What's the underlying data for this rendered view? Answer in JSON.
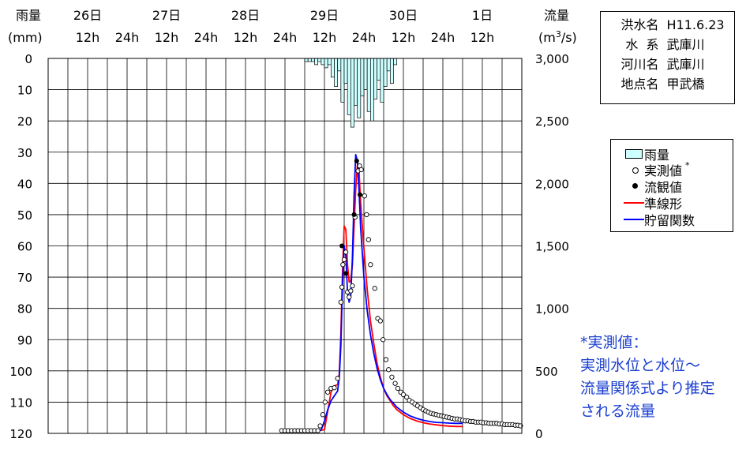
{
  "chart_data": {
    "type": "combo",
    "left_axis": {
      "title": "雨量",
      "unit": "(mm)",
      "ticks": [
        0,
        10,
        20,
        30,
        40,
        50,
        60,
        70,
        80,
        90,
        100,
        110,
        120
      ],
      "range": [
        0,
        120
      ],
      "inverted": true
    },
    "right_axis": {
      "title": "流量",
      "unit_base": "(m",
      "unit_sup": "3",
      "unit_tail": "/s)",
      "ticks": [
        "0",
        "500",
        "1,000",
        "1,500",
        "2,000",
        "2,500",
        "3,000"
      ],
      "tick_values": [
        0,
        500,
        1000,
        1500,
        2000,
        2500,
        3000
      ],
      "range": [
        0,
        3000
      ]
    },
    "x_axis": {
      "range_hours": [
        0,
        144
      ],
      "day_labels": [
        {
          "label": "26日",
          "h": 12
        },
        {
          "label": "27日",
          "h": 36
        },
        {
          "label": "28日",
          "h": 60
        },
        {
          "label": "29日",
          "h": 84
        },
        {
          "label": "30日",
          "h": 108
        },
        {
          "label": "1日",
          "h": 132
        }
      ],
      "hour_labels": [
        {
          "label": "12h",
          "h": 12
        },
        {
          "label": "24h",
          "h": 24
        },
        {
          "label": "12h",
          "h": 36
        },
        {
          "label": "24h",
          "h": 48
        },
        {
          "label": "12h",
          "h": 60
        },
        {
          "label": "24h",
          "h": 72
        },
        {
          "label": "12h",
          "h": 84
        },
        {
          "label": "24h",
          "h": 96
        },
        {
          "label": "12h",
          "h": 108
        },
        {
          "label": "24h",
          "h": 120
        },
        {
          "label": "12h",
          "h": 132
        }
      ],
      "grid_step_hours": 6
    },
    "grid": true,
    "rainfall": {
      "name": "雨量",
      "start_hour": 78,
      "step_hours": 1,
      "values": [
        1,
        1,
        1,
        2,
        1,
        2,
        3,
        2,
        6,
        9,
        4,
        14,
        8,
        18,
        22,
        15,
        19,
        12,
        10,
        17,
        20,
        13,
        7,
        14,
        9,
        4,
        8,
        2
      ]
    },
    "observed": {
      "name": "実測値",
      "points": [
        [
          71,
          22
        ],
        [
          72,
          22
        ],
        [
          73,
          22
        ],
        [
          74,
          22
        ],
        [
          75,
          22
        ],
        [
          76,
          22
        ],
        [
          77,
          22
        ],
        [
          78,
          22
        ],
        [
          79,
          22
        ],
        [
          80,
          22
        ],
        [
          81,
          22
        ],
        [
          82,
          22
        ],
        [
          82.7,
          60
        ],
        [
          83.5,
          150
        ],
        [
          84.2,
          250
        ],
        [
          85,
          330
        ],
        [
          86,
          360
        ],
        [
          87,
          365
        ],
        [
          88,
          440
        ],
        [
          89,
          1050
        ],
        [
          89.3,
          1170
        ],
        [
          89.6,
          1350
        ],
        [
          90,
          1390
        ],
        [
          90.5,
          1450
        ],
        [
          91,
          1130
        ],
        [
          91.5,
          1090
        ],
        [
          92,
          1140
        ],
        [
          92.5,
          1180
        ],
        [
          93.3,
          1730
        ],
        [
          94.2,
          2100
        ],
        [
          94.7,
          2140
        ],
        [
          95.2,
          2110
        ],
        [
          96.2,
          1900
        ],
        [
          96.8,
          1750
        ],
        [
          97.4,
          1550
        ],
        [
          98,
          1350
        ],
        [
          99.3,
          1160
        ],
        [
          100.2,
          920
        ],
        [
          101,
          900
        ],
        [
          101.8,
          750
        ],
        [
          102.7,
          590
        ],
        [
          103.5,
          510
        ],
        [
          104.5,
          450
        ],
        [
          105.5,
          400
        ],
        [
          106.3,
          360
        ],
        [
          107.2,
          330
        ],
        [
          108,
          310
        ],
        [
          109,
          290
        ],
        [
          109.8,
          265
        ],
        [
          110.7,
          250
        ],
        [
          111.5,
          235
        ],
        [
          112.3,
          220
        ],
        [
          113.2,
          205
        ],
        [
          114,
          190
        ],
        [
          114.8,
          180
        ],
        [
          115.6,
          170
        ],
        [
          116.4,
          160
        ],
        [
          117.2,
          155
        ],
        [
          118,
          150
        ],
        [
          118.8,
          145
        ],
        [
          119.6,
          140
        ],
        [
          120.4,
          135
        ],
        [
          121.2,
          130
        ],
        [
          122,
          125
        ],
        [
          122.8,
          120
        ],
        [
          123.6,
          115
        ],
        [
          124.4,
          115
        ],
        [
          125.2,
          110
        ],
        [
          126,
          105
        ],
        [
          126.8,
          100
        ],
        [
          127.6,
          100
        ],
        [
          128.4,
          95
        ],
        [
          129.2,
          95
        ],
        [
          130,
          90
        ],
        [
          130.8,
          90
        ],
        [
          131.6,
          90
        ],
        [
          132.4,
          85
        ],
        [
          133.2,
          85
        ],
        [
          134,
          80
        ],
        [
          134.8,
          80
        ],
        [
          135.6,
          80
        ],
        [
          136.4,
          80
        ],
        [
          137.2,
          75
        ],
        [
          138,
          75
        ],
        [
          138.8,
          70
        ],
        [
          139.6,
          70
        ],
        [
          140.4,
          70
        ],
        [
          141.2,
          70
        ],
        [
          142,
          65
        ],
        [
          142.8,
          65
        ],
        [
          143.6,
          60
        ]
      ]
    },
    "gauged": {
      "name": "流観値",
      "points": [
        [
          89.3,
          1500
        ],
        [
          90.5,
          1280
        ],
        [
          93,
          1750
        ],
        [
          93.8,
          2180
        ],
        [
          94.8,
          1910
        ]
      ]
    },
    "series": [
      {
        "name": "準線形",
        "color": "#ff0000",
        "points": [
          [
            82,
            20
          ],
          [
            84,
            30
          ],
          [
            85,
            180
          ],
          [
            86,
            330
          ],
          [
            87,
            380
          ],
          [
            88,
            390
          ],
          [
            88.5,
            480
          ],
          [
            89,
            800
          ],
          [
            89.5,
            1300
          ],
          [
            90,
            1660
          ],
          [
            90.5,
            1630
          ],
          [
            91,
            1350
          ],
          [
            91.5,
            1210
          ],
          [
            92,
            1220
          ],
          [
            92.5,
            1350
          ],
          [
            93,
            1650
          ],
          [
            93.5,
            1950
          ],
          [
            94,
            2150
          ],
          [
            94.5,
            2100
          ],
          [
            95,
            1850
          ],
          [
            96,
            1480
          ],
          [
            97,
            1150
          ],
          [
            98,
            900
          ],
          [
            99,
            720
          ],
          [
            100,
            560
          ],
          [
            101,
            450
          ],
          [
            102,
            360
          ],
          [
            103,
            300
          ],
          [
            104,
            260
          ],
          [
            105,
            220
          ],
          [
            106,
            190
          ],
          [
            108,
            150
          ],
          [
            110,
            120
          ],
          [
            112,
            100
          ],
          [
            114,
            85
          ],
          [
            116,
            75
          ],
          [
            118,
            68
          ],
          [
            120,
            62
          ],
          [
            122,
            58
          ],
          [
            124,
            55
          ],
          [
            126,
            55
          ]
        ]
      },
      {
        "name": "貯留関数",
        "color": "#0000ff",
        "points": [
          [
            81,
            20
          ],
          [
            82,
            22
          ],
          [
            83,
            25
          ],
          [
            84,
            100
          ],
          [
            85,
            190
          ],
          [
            86,
            260
          ],
          [
            87,
            300
          ],
          [
            88,
            340
          ],
          [
            88.5,
            450
          ],
          [
            89,
            700
          ],
          [
            89.5,
            1200
          ],
          [
            90,
            1500
          ],
          [
            90.5,
            1420
          ],
          [
            91,
            1130
          ],
          [
            91.5,
            1050
          ],
          [
            92,
            1100
          ],
          [
            92.5,
            1400
          ],
          [
            93,
            1900
          ],
          [
            93.5,
            2230
          ],
          [
            94,
            2180
          ],
          [
            94.5,
            1950
          ],
          [
            95,
            1650
          ],
          [
            96,
            1250
          ],
          [
            97,
            980
          ],
          [
            98,
            790
          ],
          [
            99,
            640
          ],
          [
            100,
            520
          ],
          [
            101,
            430
          ],
          [
            102,
            360
          ],
          [
            103,
            310
          ],
          [
            104,
            270
          ],
          [
            105,
            240
          ],
          [
            106,
            210
          ],
          [
            108,
            170
          ],
          [
            110,
            140
          ],
          [
            112,
            120
          ],
          [
            114,
            105
          ],
          [
            116,
            95
          ],
          [
            118,
            88
          ],
          [
            120,
            85
          ],
          [
            122,
            82
          ],
          [
            124,
            80
          ],
          [
            126,
            80
          ]
        ]
      }
    ]
  },
  "info_box": [
    {
      "key": "洪水名",
      "value": "H11.6.23"
    },
    {
      "key": "水  系",
      "value": "武庫川"
    },
    {
      "key": "河川名",
      "value": "武庫川"
    },
    {
      "key": "地点名",
      "value": "甲武橋"
    }
  ],
  "legend": {
    "items": [
      "雨量",
      "実測値",
      "流観値",
      "準線形",
      "貯留関数"
    ],
    "asterisk": "*",
    "rain_fill": "#ccffff",
    "red": "#ff0000",
    "blue": "#0000ff"
  },
  "note": {
    "line1": "*実測値：",
    "line2": "実測水位と水位～",
    "line3": "流量関係式より推定",
    "line4": "される流量"
  }
}
